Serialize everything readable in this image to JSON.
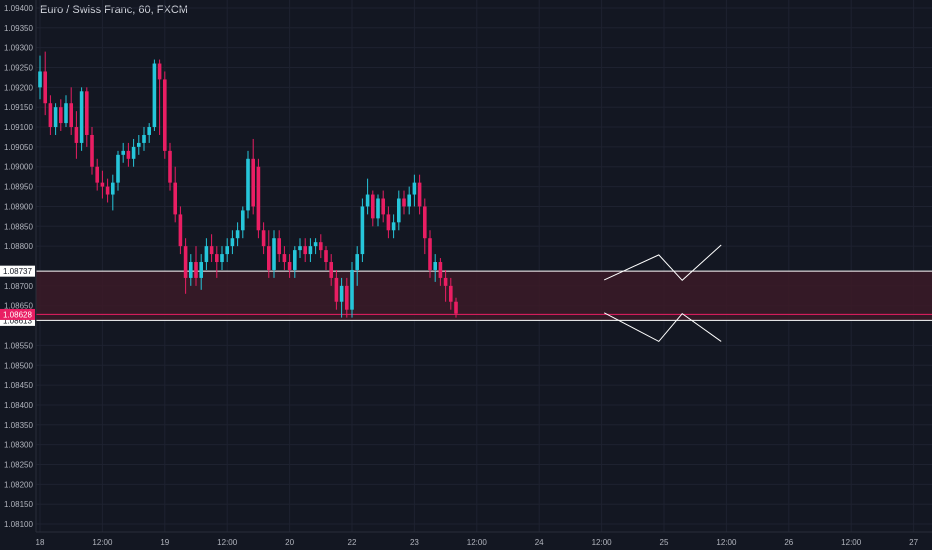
{
  "header": {
    "symbol_title": "Euro / Swiss Franc, 60, FXCM"
  },
  "colors": {
    "background": "#131722",
    "grid": "#1e2230",
    "up": "#26c6da",
    "down": "#e91e63",
    "zone_fill": "#3b1a27",
    "level_line": "#ffffff",
    "price_line": "#e91e63",
    "axis_text": "#b2b5be"
  },
  "chart_data": {
    "type": "candlestick",
    "title": "Euro / Swiss Franc, 60, FXCM",
    "ylim": [
      1.0808,
      1.0942
    ],
    "y_ticks": [
      "1.09400",
      "1.09350",
      "1.09300",
      "1.09250",
      "1.09200",
      "1.09150",
      "1.09100",
      "1.09050",
      "1.09000",
      "1.08950",
      "1.08900",
      "1.08850",
      "1.08800",
      "1.08700",
      "1.08650",
      "1.08550",
      "1.08500",
      "1.08450",
      "1.08400",
      "1.08350",
      "1.08300",
      "1.08250",
      "1.08200",
      "1.08150",
      "1.08100"
    ],
    "y_tick_values": [
      1.094,
      1.0935,
      1.093,
      1.0925,
      1.092,
      1.0915,
      1.091,
      1.0905,
      1.09,
      1.0895,
      1.089,
      1.0885,
      1.088,
      1.087,
      1.0865,
      1.0855,
      1.085,
      1.0845,
      1.084,
      1.0835,
      1.083,
      1.0825,
      1.082,
      1.0815,
      1.081
    ],
    "x_tick_labels": [
      "18",
      "12:00",
      "19",
      "12:00",
      "20",
      "22",
      "23",
      "12:00",
      "24",
      "12:00",
      "25",
      "12:00",
      "26",
      "12:00",
      "27"
    ],
    "x_tick_index": [
      0,
      12,
      24,
      36,
      48,
      60,
      72,
      84,
      96,
      108,
      120,
      132,
      144,
      156,
      168
    ],
    "price_label": "1.08628",
    "price_value": 1.08628,
    "zone_labels": {
      "top": "1.08737",
      "bottom": "1.08613"
    },
    "zone": {
      "top": 1.08737,
      "bottom": 1.08613
    },
    "projection_upper": [
      [
        108.5,
        1.08715
      ],
      [
        119,
        1.08778
      ],
      [
        123.5,
        1.08714
      ],
      [
        131,
        1.08803
      ]
    ],
    "projection_lower": [
      [
        108.5,
        1.08632
      ],
      [
        119,
        1.0856
      ],
      [
        123.5,
        1.0863
      ],
      [
        131,
        1.0856
      ]
    ],
    "candles": [
      [
        1.092,
        1.0928,
        1.0917,
        1.0924
      ],
      [
        1.0924,
        1.0929,
        1.0913,
        1.0916
      ],
      [
        1.0916,
        1.0918,
        1.0908,
        1.091
      ],
      [
        1.091,
        1.0916,
        1.0908,
        1.0915
      ],
      [
        1.0915,
        1.0917,
        1.0909,
        1.0911
      ],
      [
        1.0911,
        1.0918,
        1.091,
        1.0916
      ],
      [
        1.0916,
        1.092,
        1.0908,
        1.091
      ],
      [
        1.091,
        1.0914,
        1.0902,
        1.0906
      ],
      [
        1.0906,
        1.092,
        1.0904,
        1.0919
      ],
      [
        1.0919,
        1.092,
        1.0905,
        1.0908
      ],
      [
        1.0908,
        1.091,
        1.0898,
        1.09
      ],
      [
        1.09,
        1.0902,
        1.0894,
        1.0896
      ],
      [
        1.0896,
        1.0899,
        1.0892,
        1.0895
      ],
      [
        1.0895,
        1.0897,
        1.0891,
        1.0893
      ],
      [
        1.0893,
        1.0898,
        1.0889,
        1.0896
      ],
      [
        1.0896,
        1.0904,
        1.0894,
        1.0903
      ],
      [
        1.0903,
        1.0906,
        1.0901,
        1.0904
      ],
      [
        1.0904,
        1.0906,
        1.09,
        1.0902
      ],
      [
        1.0902,
        1.0907,
        1.09,
        1.0905
      ],
      [
        1.0905,
        1.0908,
        1.0903,
        1.0906
      ],
      [
        1.0906,
        1.091,
        1.0904,
        1.0908
      ],
      [
        1.0908,
        1.0911,
        1.0906,
        1.091
      ],
      [
        1.091,
        1.0927,
        1.0909,
        1.0926
      ],
      [
        1.0926,
        1.0927,
        1.0908,
        1.0922
      ],
      [
        1.0922,
        1.0924,
        1.0902,
        1.0904
      ],
      [
        1.0904,
        1.0906,
        1.0894,
        1.0896
      ],
      [
        1.0896,
        1.09,
        1.0886,
        1.0888
      ],
      [
        1.0888,
        1.089,
        1.0878,
        1.088
      ],
      [
        1.088,
        1.0882,
        1.0868,
        1.0872
      ],
      [
        1.0872,
        1.0878,
        1.087,
        1.0876
      ],
      [
        1.0876,
        1.088,
        1.087,
        1.0872
      ],
      [
        1.0872,
        1.0878,
        1.0869,
        1.0876
      ],
      [
        1.0876,
        1.0882,
        1.0874,
        1.088
      ],
      [
        1.088,
        1.0883,
        1.0876,
        1.0878
      ],
      [
        1.0878,
        1.088,
        1.0872,
        1.0876
      ],
      [
        1.0876,
        1.088,
        1.0874,
        1.0878
      ],
      [
        1.0878,
        1.0882,
        1.0876,
        1.088
      ],
      [
        1.088,
        1.0884,
        1.0878,
        1.0882
      ],
      [
        1.0882,
        1.0886,
        1.088,
        1.0884
      ],
      [
        1.0884,
        1.089,
        1.0882,
        1.0889
      ],
      [
        1.0889,
        1.0904,
        1.0887,
        1.0902
      ],
      [
        1.0902,
        1.0907,
        1.0888,
        1.089
      ],
      [
        1.09,
        1.0902,
        1.0882,
        1.0884
      ],
      [
        1.0884,
        1.0886,
        1.0878,
        1.088
      ],
      [
        1.088,
        1.0884,
        1.0872,
        1.0874
      ],
      [
        1.0874,
        1.0884,
        1.0872,
        1.0882
      ],
      [
        1.0882,
        1.0884,
        1.0876,
        1.0878
      ],
      [
        1.0878,
        1.088,
        1.0874,
        1.0876
      ],
      [
        1.0876,
        1.0878,
        1.0872,
        1.0874
      ],
      [
        1.0874,
        1.088,
        1.0872,
        1.0879
      ],
      [
        1.0879,
        1.0882,
        1.0877,
        1.088
      ],
      [
        1.088,
        1.0882,
        1.0876,
        1.0878
      ],
      [
        1.0878,
        1.0882,
        1.0876,
        1.088
      ],
      [
        1.088,
        1.0882,
        1.0878,
        1.0881
      ],
      [
        1.0881,
        1.0883,
        1.0877,
        1.0879
      ],
      [
        1.0879,
        1.088,
        1.0874,
        1.0876
      ],
      [
        1.0876,
        1.0878,
        1.087,
        1.0872
      ],
      [
        1.0872,
        1.0874,
        1.0864,
        1.0866
      ],
      [
        1.0866,
        1.0872,
        1.0862,
        1.087
      ],
      [
        1.087,
        1.0872,
        1.0862,
        1.0864
      ],
      [
        1.0864,
        1.0876,
        1.0862,
        1.0874
      ],
      [
        1.0874,
        1.088,
        1.087,
        1.0878
      ],
      [
        1.0878,
        1.0892,
        1.0876,
        1.089
      ],
      [
        1.089,
        1.0897,
        1.0888,
        1.0893
      ],
      [
        1.0893,
        1.0894,
        1.0885,
        1.0887
      ],
      [
        1.0887,
        1.0893,
        1.0885,
        1.0892
      ],
      [
        1.0892,
        1.0894,
        1.0886,
        1.0888
      ],
      [
        1.0888,
        1.089,
        1.0882,
        1.0884
      ],
      [
        1.0884,
        1.0888,
        1.0882,
        1.0886
      ],
      [
        1.0886,
        1.0894,
        1.0884,
        1.0892
      ],
      [
        1.0892,
        1.0894,
        1.0888,
        1.089
      ],
      [
        1.089,
        1.0895,
        1.0888,
        1.0893
      ],
      [
        1.0893,
        1.0898,
        1.089,
        1.0896
      ],
      [
        1.0896,
        1.0898,
        1.0888,
        1.089
      ],
      [
        1.089,
        1.0892,
        1.0878,
        1.0882
      ],
      [
        1.0882,
        1.0884,
        1.0872,
        1.0874
      ],
      [
        1.0874,
        1.0878,
        1.0871,
        1.0876
      ],
      [
        1.0876,
        1.0877,
        1.087,
        1.0872
      ],
      [
        1.0872,
        1.0874,
        1.0866,
        1.087
      ],
      [
        1.087,
        1.0872,
        1.0864,
        1.0866
      ],
      [
        1.0866,
        1.0867,
        1.0862,
        1.0863
      ]
    ]
  }
}
